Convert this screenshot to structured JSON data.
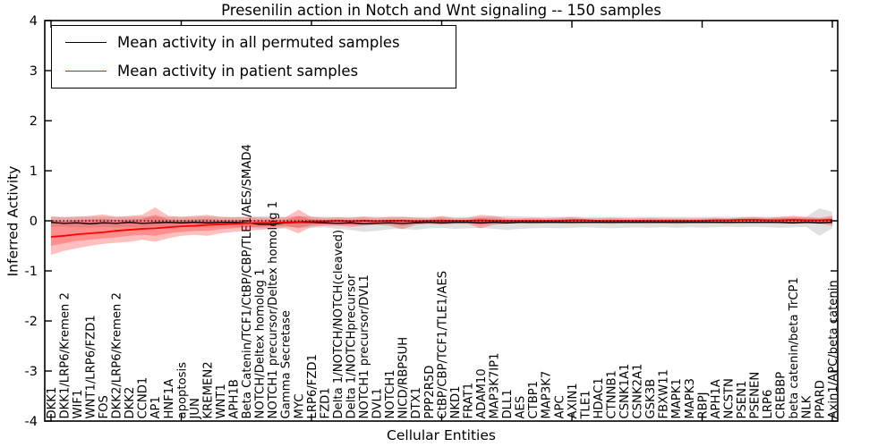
{
  "chart_data": {
    "type": "line",
    "title": "Presenilin action in Notch and Wnt signaling -- 150 samples",
    "xlabel": "Cellular Entities",
    "ylabel": "Inferred Activity",
    "ylim": [
      -4,
      4
    ],
    "yticks": [
      -4,
      -3,
      -2,
      -1,
      0,
      1,
      2,
      3,
      4
    ],
    "xtick_step": 10,
    "grid": false,
    "legend_position": "upper left",
    "zero_line": true,
    "categories": [
      "DKK1",
      "DKK1/LRP6/Kremen 2",
      "WIF1",
      "WNT1/LRP6/FZD1",
      "FOS",
      "DKK2/LRP6/Kremen 2",
      "DKK2",
      "CCND1",
      "AP1",
      "HNF1A",
      "apoptosis",
      "JUN",
      "KREMEN2",
      "WNT1",
      "APH1B",
      "Beta Catenin/TCF1/CtBP/CBP/TLE1/AES/SMAD4",
      "NOTCH/Deltex homolog 1",
      "NOTCH1 precursor/Deltex homolog 1",
      "Gamma Secretase",
      "MYC",
      "LRP6/FZD1",
      "FZD1",
      "Delta 1/NOTCH/NOTCH(cleaved)",
      "Delta 1/NOTCHprecursor",
      "NOTCH1 precursor/DVL1",
      "DVL1",
      "NOTCH1",
      "NICD/RBPSUH",
      "DTX1",
      "PPP2R5D",
      "CtBP/CBP/TCF1/TLE1/AES",
      "NKD1",
      "FRAT1",
      "ADAM10",
      "MAP3K7IP1",
      "DLL1",
      "AES",
      "CTBP1",
      "MAP3K7",
      "APC",
      "AXIN1",
      "TLE1",
      "HDAC1",
      "CTNNB1",
      "CSNK1A1",
      "CSNK2A1",
      "GSK3B",
      "FBXW11",
      "MAPK1",
      "MAPK3",
      "RBPJ",
      "APH1A",
      "NCSTN",
      "PSEN1",
      "PSENEN",
      "LRP6",
      "CREBBP",
      "beta catenin/beta TrCP1",
      "NLK",
      "PPARD",
      "Axin1/APC/beta catenin"
    ],
    "series": [
      {
        "name": "Mean activity in all permuted samples",
        "color": "#000000",
        "values": [
          -0.03,
          -0.05,
          -0.04,
          -0.06,
          -0.04,
          -0.05,
          -0.03,
          -0.05,
          -0.04,
          -0.03,
          -0.04,
          -0.03,
          -0.04,
          -0.03,
          -0.03,
          -0.04,
          -0.07,
          -0.07,
          -0.04,
          -0.03,
          -0.03,
          -0.04,
          -0.05,
          -0.04,
          -0.06,
          -0.05,
          -0.04,
          -0.05,
          -0.04,
          -0.03,
          -0.04,
          -0.03,
          -0.03,
          -0.04,
          -0.03,
          -0.04,
          -0.03,
          -0.03,
          -0.03,
          -0.03,
          -0.03,
          -0.03,
          -0.03,
          -0.03,
          -0.03,
          -0.03,
          -0.03,
          -0.03,
          -0.03,
          -0.03,
          -0.03,
          -0.03,
          -0.03,
          -0.03,
          -0.03,
          -0.03,
          -0.03,
          -0.04,
          -0.03,
          -0.04,
          -0.03
        ]
      },
      {
        "name": "Mean activity in patient samples",
        "color": "#ff0000",
        "values": [
          -0.32,
          -0.3,
          -0.27,
          -0.25,
          -0.23,
          -0.2,
          -0.18,
          -0.16,
          -0.15,
          -0.13,
          -0.11,
          -0.1,
          -0.08,
          -0.07,
          -0.06,
          -0.05,
          -0.04,
          -0.04,
          -0.03,
          -0.02,
          -0.01,
          -0.01,
          0.0,
          -0.01,
          0.0,
          -0.01,
          0.0,
          0.0,
          -0.01,
          0.0,
          0.0,
          0.0,
          0.0,
          0.01,
          0.0,
          0.0,
          0.0,
          0.0,
          0.0,
          0.0,
          0.01,
          0.01,
          0.0,
          0.0,
          0.0,
          0.0,
          0.0,
          0.0,
          0.0,
          0.0,
          0.0,
          0.01,
          0.01,
          0.02,
          0.02,
          0.01,
          0.01,
          0.02,
          0.01,
          0.01,
          0.02
        ]
      }
    ],
    "bands": [
      {
        "name": "permuted-samples-range",
        "color": "#000000",
        "opacity": 0.12,
        "lower": [
          -0.12,
          -0.12,
          -0.13,
          -0.14,
          -0.12,
          -0.13,
          -0.12,
          -0.13,
          -0.12,
          -0.12,
          -0.13,
          -0.12,
          -0.13,
          -0.12,
          -0.12,
          -0.13,
          -0.15,
          -0.16,
          -0.13,
          -0.13,
          -0.14,
          -0.13,
          -0.16,
          -0.18,
          -0.22,
          -0.2,
          -0.17,
          -0.16,
          -0.18,
          -0.15,
          -0.14,
          -0.16,
          -0.15,
          -0.14,
          -0.16,
          -0.18,
          -0.16,
          -0.15,
          -0.14,
          -0.15,
          -0.14,
          -0.13,
          -0.14,
          -0.15,
          -0.14,
          -0.13,
          -0.14,
          -0.13,
          -0.14,
          -0.13,
          -0.14,
          -0.13,
          -0.12,
          -0.13,
          -0.12,
          -0.13,
          -0.14,
          -0.13,
          -0.12,
          -0.3,
          -0.15
        ],
        "upper": [
          0.08,
          0.08,
          0.09,
          0.08,
          0.09,
          0.08,
          0.08,
          0.09,
          0.08,
          0.08,
          0.08,
          0.08,
          0.09,
          0.08,
          0.08,
          0.08,
          0.09,
          0.1,
          0.08,
          0.09,
          0.09,
          0.08,
          0.08,
          0.08,
          0.09,
          0.08,
          0.08,
          0.08,
          0.08,
          0.08,
          0.08,
          0.08,
          0.08,
          0.08,
          0.09,
          0.1,
          0.09,
          0.08,
          0.08,
          0.08,
          0.08,
          0.08,
          0.08,
          0.08,
          0.08,
          0.08,
          0.08,
          0.08,
          0.08,
          0.08,
          0.08,
          0.08,
          0.08,
          0.08,
          0.08,
          0.08,
          0.08,
          0.08,
          0.08,
          0.25,
          0.18
        ]
      },
      {
        "name": "patient-samples-range-outer",
        "color": "#ff0000",
        "opacity": 0.25,
        "lower": [
          -0.68,
          -0.6,
          -0.55,
          -0.5,
          -0.46,
          -0.44,
          -0.42,
          -0.38,
          -0.42,
          -0.35,
          -0.3,
          -0.28,
          -0.3,
          -0.25,
          -0.22,
          -0.2,
          -0.18,
          -0.16,
          -0.15,
          -0.25,
          -0.12,
          -0.1,
          -0.1,
          -0.12,
          -0.1,
          -0.08,
          -0.1,
          -0.17,
          -0.08,
          -0.06,
          -0.08,
          -0.06,
          -0.06,
          -0.15,
          -0.08,
          -0.06,
          -0.05,
          -0.06,
          -0.05,
          -0.05,
          -0.06,
          -0.05,
          -0.05,
          -0.06,
          -0.05,
          -0.05,
          -0.05,
          -0.05,
          -0.06,
          -0.05,
          -0.05,
          -0.05,
          -0.06,
          -0.05,
          -0.05,
          -0.05,
          -0.06,
          -0.06,
          -0.05,
          -0.06,
          -0.1
        ],
        "upper": [
          0.09,
          0.07,
          0.08,
          0.1,
          0.13,
          0.08,
          0.1,
          0.12,
          0.27,
          0.1,
          0.08,
          0.1,
          0.12,
          0.08,
          0.07,
          0.08,
          0.07,
          0.06,
          0.07,
          0.22,
          0.08,
          0.06,
          0.07,
          0.06,
          0.08,
          0.06,
          0.08,
          0.08,
          0.06,
          0.05,
          0.1,
          0.05,
          0.06,
          0.12,
          0.1,
          0.05,
          0.05,
          0.06,
          0.05,
          0.06,
          0.08,
          0.05,
          0.05,
          0.06,
          0.05,
          0.05,
          0.06,
          0.05,
          0.05,
          0.05,
          0.05,
          0.06,
          0.05,
          0.07,
          0.08,
          0.06,
          0.08,
          0.1,
          0.08,
          0.06,
          0.1
        ]
      },
      {
        "name": "patient-samples-range-inner",
        "color": "#ff0000",
        "opacity": 0.25,
        "lower": [
          -0.5,
          -0.45,
          -0.4,
          -0.38,
          -0.35,
          -0.33,
          -0.3,
          -0.28,
          -0.3,
          -0.25,
          -0.22,
          -0.2,
          -0.2,
          -0.17,
          -0.15,
          -0.13,
          -0.12,
          -0.11,
          -0.1,
          -0.15,
          -0.08,
          -0.07,
          -0.07,
          -0.08,
          -0.07,
          -0.05,
          -0.06,
          -0.1,
          -0.05,
          -0.04,
          -0.05,
          -0.04,
          -0.04,
          -0.08,
          -0.05,
          -0.04,
          -0.03,
          -0.04,
          -0.03,
          -0.03,
          -0.04,
          -0.03,
          -0.03,
          -0.04,
          -0.03,
          -0.03,
          -0.03,
          -0.03,
          -0.04,
          -0.03,
          -0.03,
          -0.03,
          -0.04,
          -0.03,
          -0.03,
          -0.03,
          -0.04,
          -0.04,
          -0.03,
          -0.04,
          -0.06
        ],
        "upper": [
          0.02,
          0.0,
          0.02,
          0.03,
          0.04,
          0.02,
          0.03,
          0.04,
          0.12,
          0.03,
          0.02,
          0.03,
          0.04,
          0.02,
          0.02,
          0.02,
          0.02,
          0.02,
          0.02,
          0.1,
          0.03,
          0.02,
          0.03,
          0.02,
          0.03,
          0.02,
          0.03,
          0.03,
          0.02,
          0.02,
          0.05,
          0.02,
          0.02,
          0.06,
          0.05,
          0.02,
          0.02,
          0.03,
          0.02,
          0.03,
          0.04,
          0.03,
          0.02,
          0.03,
          0.02,
          0.02,
          0.03,
          0.02,
          0.03,
          0.02,
          0.03,
          0.03,
          0.03,
          0.04,
          0.05,
          0.04,
          0.05,
          0.06,
          0.05,
          0.04,
          0.06
        ]
      }
    ]
  }
}
